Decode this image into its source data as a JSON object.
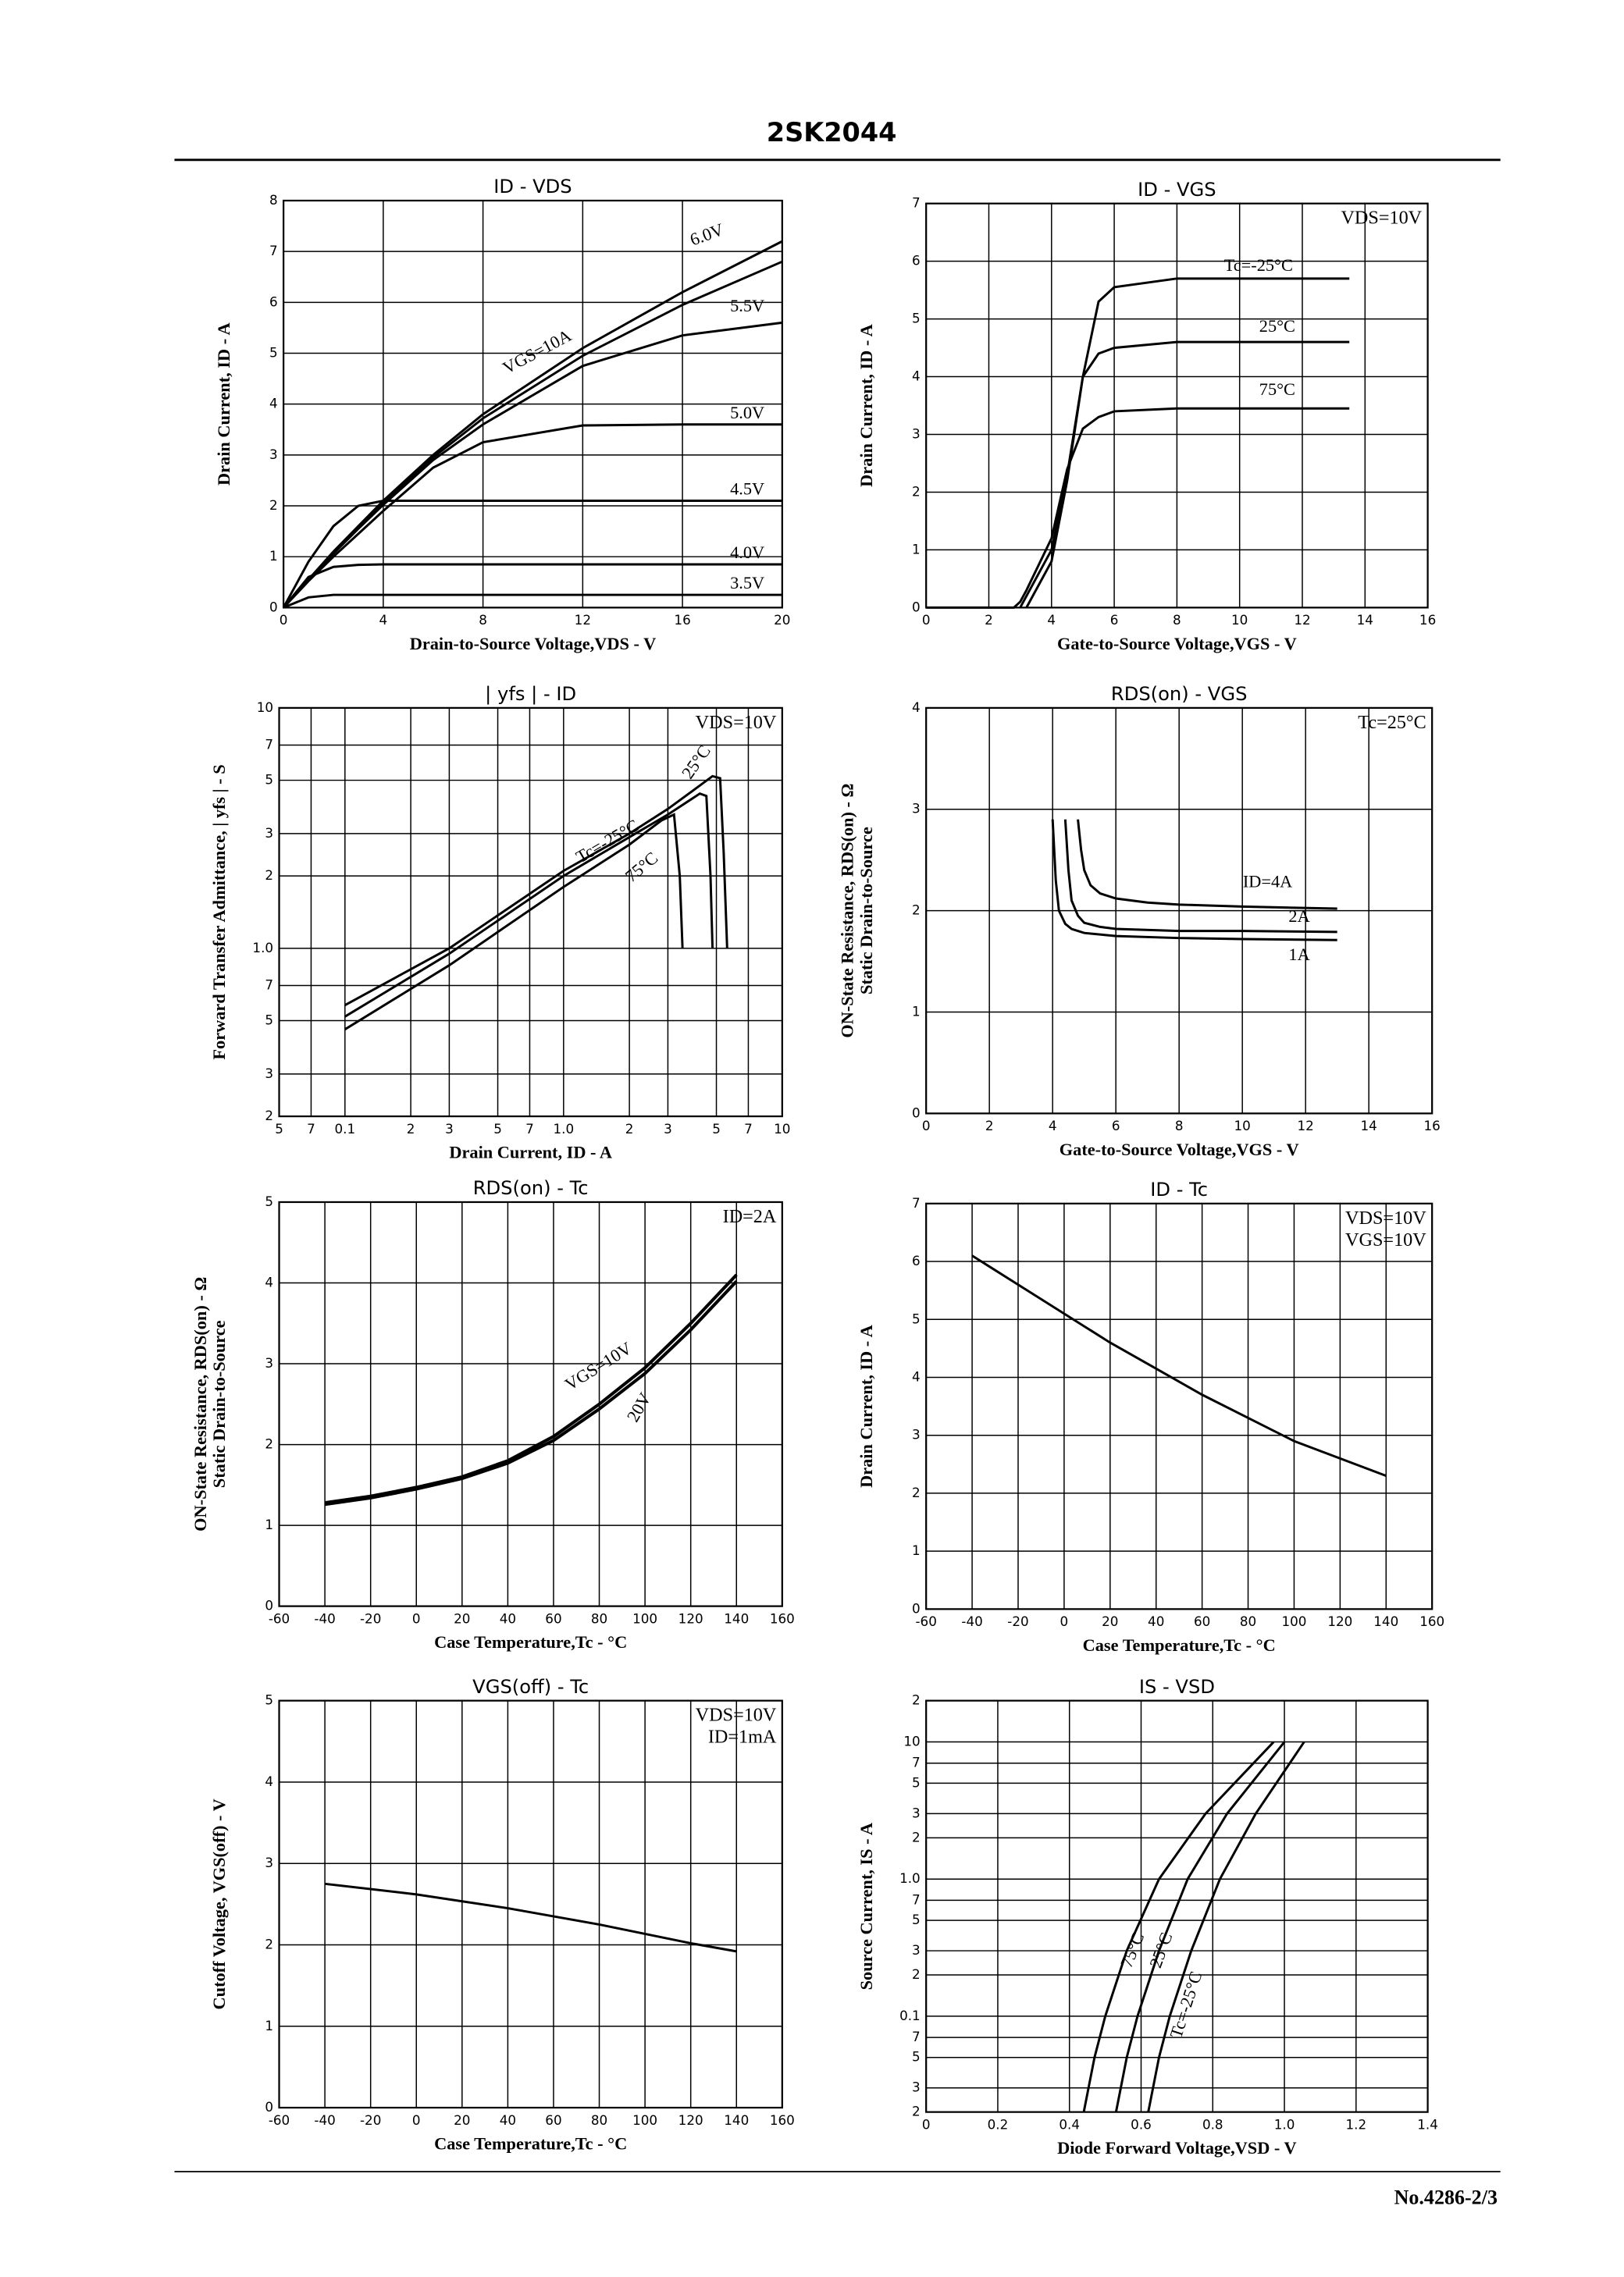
{
  "header": {
    "title": "2SK2044"
  },
  "footer": {
    "text": "No.4286-2/3"
  },
  "chart_data": [
    {
      "type": "line",
      "title": "ID - VDS",
      "xlabel": "Drain-to-Source Voltage,VDS - V",
      "ylabel": "Drain Current, ID - A",
      "xlim": [
        0,
        20
      ],
      "xticks": [
        0,
        4,
        8,
        12,
        16,
        20
      ],
      "ylim": [
        0,
        8
      ],
      "yticks": [
        0,
        1,
        2,
        3,
        4,
        5,
        6,
        7,
        8
      ],
      "grid": true,
      "series": [
        {
          "name": "VGS=10A",
          "color": "#000000",
          "x": [
            0,
            1,
            2,
            3,
            4,
            6,
            8,
            12,
            16,
            20
          ],
          "values": [
            0,
            0.55,
            1.1,
            1.6,
            2.1,
            3.0,
            3.8,
            5.1,
            6.2,
            7.2
          ]
        },
        {
          "name": "6.0V",
          "color": "#000000",
          "x": [
            0,
            1,
            2,
            3,
            4,
            6,
            8,
            12,
            16,
            20
          ],
          "values": [
            0,
            0.55,
            1.08,
            1.58,
            2.07,
            2.95,
            3.72,
            4.95,
            5.95,
            6.8
          ]
        },
        {
          "name": "5.5V",
          "color": "#000000",
          "x": [
            0,
            1,
            2,
            3,
            4,
            6,
            8,
            12,
            16,
            20
          ],
          "values": [
            0,
            0.54,
            1.06,
            1.55,
            2.02,
            2.9,
            3.6,
            4.75,
            5.35,
            5.6
          ]
        },
        {
          "name": "5.0V",
          "color": "#000000",
          "x": [
            0,
            1,
            2,
            3,
            4,
            6,
            8,
            12,
            16,
            20
          ],
          "values": [
            0,
            0.52,
            1.0,
            1.45,
            1.9,
            2.75,
            3.25,
            3.58,
            3.6,
            3.6
          ]
        },
        {
          "name": "4.5V",
          "color": "#000000",
          "x": [
            0,
            1,
            2,
            3,
            4,
            6,
            8,
            12,
            16,
            20
          ],
          "values": [
            0,
            0.9,
            1.6,
            2.0,
            2.1,
            2.1,
            2.1,
            2.1,
            2.1,
            2.1
          ]
        },
        {
          "name": "4.0V",
          "color": "#000000",
          "x": [
            0,
            1,
            2,
            3,
            4,
            6,
            8,
            12,
            16,
            20
          ],
          "values": [
            0,
            0.6,
            0.8,
            0.84,
            0.85,
            0.85,
            0.85,
            0.85,
            0.85,
            0.85
          ]
        },
        {
          "name": "3.5V",
          "color": "#000000",
          "x": [
            0,
            1,
            2,
            3,
            4,
            6,
            8,
            12,
            16,
            20
          ],
          "values": [
            0,
            0.2,
            0.25,
            0.25,
            0.25,
            0.25,
            0.25,
            0.25,
            0.25,
            0.25
          ]
        }
      ]
    },
    {
      "type": "line",
      "title": "ID - VGS",
      "xlabel": "Gate-to-Source Voltage,VGS - V",
      "ylabel": "Drain Current, ID - A",
      "xlim": [
        0,
        16
      ],
      "xticks": [
        0,
        2,
        4,
        6,
        8,
        10,
        12,
        14,
        16
      ],
      "ylim": [
        0,
        7
      ],
      "yticks": [
        0,
        1,
        2,
        3,
        4,
        5,
        6,
        7
      ],
      "grid": true,
      "annotations": [
        "VDS=10V"
      ],
      "series": [
        {
          "name": "Tc=-25°C",
          "color": "#000000",
          "x": [
            3.2,
            4,
            4.5,
            5,
            5.5,
            6,
            8,
            13.5
          ],
          "values": [
            0,
            0.8,
            2.2,
            4.0,
            5.3,
            5.55,
            5.7,
            5.7
          ]
        },
        {
          "name": "25°C",
          "color": "#000000",
          "x": [
            3.0,
            3.2,
            4,
            4.5,
            5,
            5.5,
            6,
            8,
            13.5
          ],
          "values": [
            0,
            0.2,
            1.0,
            2.3,
            4.0,
            4.4,
            4.5,
            4.6,
            4.6
          ]
        },
        {
          "name": "75°C",
          "color": "#000000",
          "x": [
            0,
            2.8,
            3,
            3.2,
            4,
            4.5,
            5,
            5.5,
            6,
            8,
            13.5
          ],
          "values": [
            0,
            0,
            0.1,
            0.3,
            1.2,
            2.4,
            3.1,
            3.3,
            3.4,
            3.45,
            3.45
          ]
        }
      ]
    },
    {
      "type": "line",
      "title": "| yfs | - ID",
      "xlabel": "Drain Current, ID - A",
      "ylabel": "Forward Transfer Admittance, | yfs | - S",
      "xscale": "log",
      "yscale": "log",
      "xlim": [
        0.05,
        10
      ],
      "xticks": [
        {
          "value": 0.05,
          "label": "5"
        },
        {
          "value": 0.07,
          "label": "7"
        },
        0.1,
        {
          "value": 0.2,
          "label": "2"
        },
        {
          "value": 0.3,
          "label": "3"
        },
        {
          "value": 0.5,
          "label": "5"
        },
        {
          "value": 0.7,
          "label": "7"
        },
        {
          "value": 1,
          "label": "1.0"
        },
        2,
        3,
        5,
        7,
        10
      ],
      "ylim": [
        0.2,
        10
      ],
      "yticks": [
        10,
        7,
        5,
        3,
        2,
        {
          "value": 1,
          "label": "1.0"
        },
        {
          "value": 0.7,
          "label": "7"
        },
        {
          "value": 0.5,
          "label": "5"
        },
        {
          "value": 0.3,
          "label": "3"
        },
        {
          "value": 0.2,
          "label": "2"
        }
      ],
      "grid": true,
      "annotations": [
        "VDS=10V"
      ],
      "series": [
        {
          "name": "25°C",
          "color": "#000000",
          "x": [
            0.1,
            0.3,
            1,
            2,
            3,
            4,
            4.8,
            5.2,
            5.4,
            5.6
          ],
          "values": [
            0.58,
            1.0,
            2.1,
            3.0,
            3.8,
            4.6,
            5.2,
            5.1,
            2.5,
            1.0
          ]
        },
        {
          "name": "Tc=-25°C",
          "color": "#000000",
          "x": [
            0.1,
            0.3,
            1,
            2,
            3,
            4.2,
            4.5,
            4.7,
            4.8
          ],
          "values": [
            0.52,
            0.95,
            2.0,
            2.9,
            3.6,
            4.4,
            4.3,
            2.0,
            1.0
          ]
        },
        {
          "name": "75°C",
          "color": "#000000",
          "x": [
            0.1,
            0.3,
            1,
            2,
            2.8,
            3.2,
            3.4,
            3.5
          ],
          "values": [
            0.46,
            0.85,
            1.8,
            2.7,
            3.4,
            3.6,
            2.0,
            1.0
          ]
        }
      ]
    },
    {
      "type": "line",
      "title": "RDS(on) - VGS",
      "xlabel": "Gate-to-Source Voltage,VGS - V",
      "ylabel": [
        "Static Drain-to-Source",
        "ON-State Resistance, RDS(on) - Ω"
      ],
      "xlim": [
        0,
        16
      ],
      "xticks": [
        0,
        2,
        4,
        6,
        8,
        10,
        12,
        14,
        16
      ],
      "ylim": [
        0,
        4
      ],
      "yticks": [
        0,
        1,
        2,
        3,
        4
      ],
      "grid": true,
      "annotations": [
        "Tc=25°C"
      ],
      "series": [
        {
          "name": "ID=4A",
          "color": "#000000",
          "x": [
            4.8,
            4.9,
            5,
            5.2,
            5.5,
            6,
            7,
            8,
            10,
            13
          ],
          "values": [
            2.9,
            2.6,
            2.4,
            2.25,
            2.17,
            2.12,
            2.08,
            2.06,
            2.04,
            2.02
          ]
        },
        {
          "name": "2A",
          "color": "#000000",
          "x": [
            4.4,
            4.5,
            4.6,
            4.8,
            5,
            5.5,
            6,
            8,
            10,
            13
          ],
          "values": [
            2.9,
            2.4,
            2.1,
            1.95,
            1.88,
            1.84,
            1.82,
            1.8,
            1.8,
            1.79
          ]
        },
        {
          "name": "1A",
          "color": "#000000",
          "x": [
            4.0,
            4.1,
            4.2,
            4.4,
            4.6,
            5,
            6,
            8,
            10,
            13
          ],
          "values": [
            2.9,
            2.3,
            2.0,
            1.87,
            1.82,
            1.78,
            1.75,
            1.73,
            1.72,
            1.71
          ]
        }
      ]
    },
    {
      "type": "line",
      "title": "RDS(on) - Tc",
      "xlabel": "Case Temperature,Tc - °C",
      "ylabel": [
        "Static Drain-to-Source",
        "ON-State Resistance, RDS(on) - Ω"
      ],
      "xlim": [
        -60,
        160
      ],
      "xticks": [
        -60,
        -40,
        -20,
        0,
        20,
        40,
        60,
        80,
        100,
        120,
        140,
        160
      ],
      "ylim": [
        0,
        5
      ],
      "yticks": [
        0,
        1,
        2,
        3,
        4,
        5
      ],
      "grid": true,
      "annotations": [
        "ID=2A"
      ],
      "series": [
        {
          "name": "VGS=10V",
          "color": "#000000",
          "x": [
            -40,
            -20,
            0,
            20,
            40,
            60,
            80,
            100,
            120,
            140
          ],
          "values": [
            1.28,
            1.36,
            1.47,
            1.6,
            1.8,
            2.1,
            2.5,
            2.95,
            3.5,
            4.1
          ]
        },
        {
          "name": "20V",
          "color": "#000000",
          "x": [
            -40,
            -20,
            0,
            20,
            40,
            60,
            80,
            100,
            120,
            140
          ],
          "values": [
            1.26,
            1.34,
            1.45,
            1.58,
            1.77,
            2.05,
            2.44,
            2.88,
            3.42,
            4.02
          ]
        }
      ]
    },
    {
      "type": "line",
      "title": "ID - Tc",
      "xlabel": "Case Temperature,Tc - °C",
      "ylabel": "Drain Current, ID - A",
      "xlim": [
        -60,
        160
      ],
      "xticks": [
        -60,
        -40,
        -20,
        0,
        20,
        40,
        60,
        80,
        100,
        120,
        140,
        160
      ],
      "ylim": [
        0,
        7
      ],
      "yticks": [
        0,
        1,
        2,
        3,
        4,
        5,
        6,
        7
      ],
      "grid": true,
      "annotations": [
        "VDS=10V",
        "VGS=10V"
      ],
      "series": [
        {
          "color": "#000000",
          "x": [
            -40,
            -20,
            0,
            20,
            40,
            60,
            80,
            100,
            120,
            140
          ],
          "values": [
            6.1,
            5.6,
            5.1,
            4.6,
            4.15,
            3.7,
            3.3,
            2.9,
            2.6,
            2.3
          ]
        }
      ]
    },
    {
      "type": "line",
      "title": "VGS(off) - Tc",
      "xlabel": "Case Temperature,Tc - °C",
      "ylabel": "Cutoff Voltage, VGS(off) - V",
      "xlim": [
        -60,
        160
      ],
      "xticks": [
        -60,
        -40,
        -20,
        0,
        20,
        40,
        60,
        80,
        100,
        120,
        140,
        160
      ],
      "ylim": [
        0,
        5
      ],
      "yticks": [
        0,
        1,
        2,
        3,
        4,
        5
      ],
      "grid": true,
      "annotations": [
        "VDS=10V",
        "ID=1mA"
      ],
      "series": [
        {
          "color": "#000000",
          "x": [
            -40,
            0,
            40,
            80,
            120,
            140
          ],
          "values": [
            2.75,
            2.62,
            2.45,
            2.25,
            2.02,
            1.92
          ]
        }
      ]
    },
    {
      "type": "line",
      "title": "IS - VSD",
      "xlabel": "Diode Forward Voltage,VSD - V",
      "ylabel": "Source Current, IS - A",
      "yscale": "log",
      "xlim": [
        0,
        1.4
      ],
      "xticks": [
        0,
        0.2,
        0.4,
        0.6,
        0.8,
        {
          "value": 1,
          "label": "1.0"
        },
        1.2,
        1.4
      ],
      "ylim": [
        0.02,
        20
      ],
      "yticks": [
        {
          "value": 20,
          "label": "2"
        },
        10,
        7,
        5,
        3,
        2,
        {
          "value": 1,
          "label": "1.0"
        },
        {
          "value": 0.7,
          "label": "7"
        },
        {
          "value": 0.5,
          "label": "5"
        },
        {
          "value": 0.3,
          "label": "3"
        },
        {
          "value": 0.2,
          "label": "2"
        },
        0.1,
        {
          "value": 0.07,
          "label": "7"
        },
        {
          "value": 0.05,
          "label": "5"
        },
        {
          "value": 0.03,
          "label": "3"
        },
        {
          "value": 0.02,
          "label": "2"
        }
      ],
      "grid": true,
      "series": [
        {
          "name": "75°C",
          "color": "#000000",
          "x": [
            0.44,
            0.47,
            0.5,
            0.56,
            0.65,
            0.78,
            0.97
          ],
          "values": [
            0.02,
            0.05,
            0.1,
            0.3,
            1,
            3,
            10
          ]
        },
        {
          "name": "25°C",
          "color": "#000000",
          "x": [
            0.53,
            0.56,
            0.59,
            0.65,
            0.73,
            0.84,
            1.0
          ],
          "values": [
            0.02,
            0.05,
            0.1,
            0.3,
            1,
            3,
            10
          ]
        },
        {
          "name": "Tc=-25°C",
          "color": "#000000",
          "x": [
            0.62,
            0.65,
            0.68,
            0.74,
            0.82,
            0.92,
            1.055
          ],
          "values": [
            0.02,
            0.05,
            0.1,
            0.3,
            1,
            3,
            10
          ]
        }
      ]
    }
  ]
}
